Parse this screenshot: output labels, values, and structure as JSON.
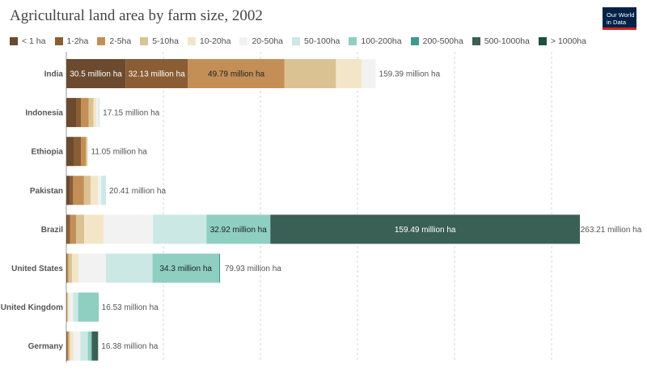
{
  "chart_data": {
    "type": "bar",
    "orientation": "horizontal",
    "stacked": true,
    "title": "Agricultural land area by farm size, 2002",
    "unit": "million ha",
    "grid": true,
    "legend_position": "top",
    "categories": [
      "India",
      "Indonesia",
      "Ethiopia",
      "Pakistan",
      "Brazil",
      "United States",
      "United Kingdom",
      "Germany"
    ],
    "totals": [
      159.39,
      17.15,
      11.05,
      20.41,
      263.21,
      79.93,
      16.53,
      16.38
    ],
    "total_labels": [
      "159.39 million ha",
      "17.15 million ha",
      "11.05 million ha",
      "20.41 million ha",
      "263.21 million ha",
      "79.93 million ha",
      "16.53 million ha",
      "16.38 million ha"
    ],
    "series": [
      {
        "name": "< 1 ha",
        "color": "#6b4a2e",
        "values": [
          30.5,
          5.0,
          4.0,
          2.0,
          0.7,
          0.2,
          0.1,
          0.3
        ]
      },
      {
        "name": "1-2ha",
        "color": "#8a5d35",
        "values": [
          32.13,
          2.5,
          3.5,
          1.5,
          1.3,
          0.3,
          0.1,
          0.3
        ]
      },
      {
        "name": "2-5ha",
        "color": "#c38f57",
        "values": [
          49.79,
          4.0,
          2.5,
          5.6,
          3.0,
          0.7,
          0.2,
          0.6
        ]
      },
      {
        "name": "5-10ha",
        "color": "#dbc293",
        "values": [
          26.5,
          2.5,
          0.8,
          3.5,
          4.2,
          1.7,
          0.4,
          0.7
        ]
      },
      {
        "name": "10-20ha",
        "color": "#f3e6c8",
        "values": [
          13.3,
          1.5,
          0.25,
          3.7,
          10.0,
          3.5,
          0.8,
          1.8
        ]
      },
      {
        "name": "20-50ha",
        "color": "#f2f2f2",
        "values": [
          7.17,
          1.1,
          0.0,
          1.7,
          25.5,
          14.0,
          1.9,
          3.6
        ]
      },
      {
        "name": "50-100ha",
        "color": "#cbe8e4",
        "values": [
          0.0,
          0.55,
          0.0,
          2.41,
          27.5,
          24.0,
          2.6,
          3.8
        ]
      },
      {
        "name": "100-200ha",
        "color": "#8ecfc2",
        "values": [
          0.0,
          0.0,
          0.0,
          0.0,
          32.92,
          34.3,
          10.2,
          1.8
        ]
      },
      {
        "name": "200-500ha",
        "color": "#3f9a8d",
        "values": [
          0.0,
          0.0,
          0.0,
          0.0,
          0.0,
          0.5,
          0.23,
          0.3
        ]
      },
      {
        "name": "500-1000ha",
        "color": "#3a5f55",
        "values": [
          0.0,
          0.0,
          0.0,
          0.0,
          159.49,
          0.0,
          0.0,
          3.18
        ]
      },
      {
        "name": "> 1000ha",
        "color": "#1e4f43",
        "values": [
          0.0,
          0.0,
          0.0,
          0.0,
          0.0,
          0.0,
          0.0,
          0.0
        ]
      }
    ]
  },
  "branding": {
    "line1": "Our World",
    "line2": "in Data"
  }
}
